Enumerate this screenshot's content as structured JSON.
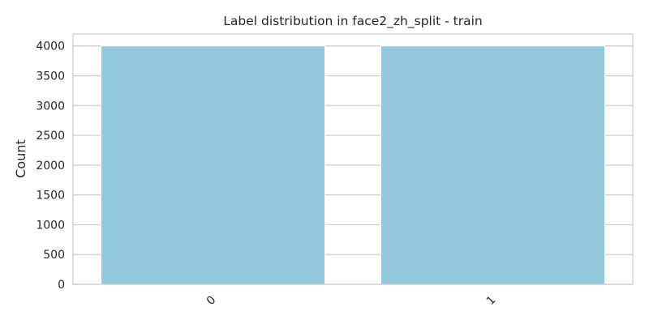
{
  "chart_data": {
    "type": "bar",
    "title": "Label distribution in face2_zh_split - train",
    "xlabel": "",
    "ylabel": "Count",
    "categories": [
      "0",
      "1"
    ],
    "values": [
      4000,
      4000
    ],
    "ylim": [
      0,
      4200
    ],
    "yticks": [
      0,
      500,
      1000,
      1500,
      2000,
      2500,
      3000,
      3500,
      4000
    ],
    "grid": true,
    "bar_color": "#95c9df",
    "grid_color": "#cccccc",
    "x_tick_rotation_deg": 45
  }
}
